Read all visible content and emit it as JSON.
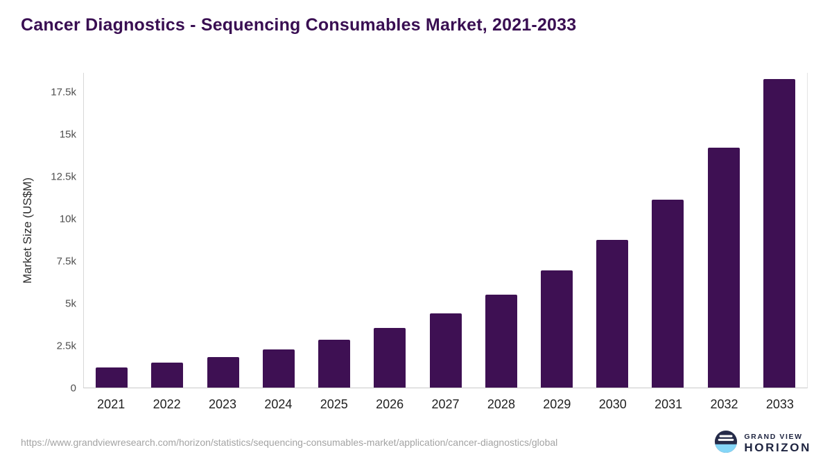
{
  "title": "Cancer Diagnostics - Sequencing Consumables Market, 2021-2033",
  "chart_data": {
    "type": "bar",
    "categories": [
      "2021",
      "2022",
      "2023",
      "2024",
      "2025",
      "2026",
      "2027",
      "2028",
      "2029",
      "2030",
      "2031",
      "2032",
      "2033"
    ],
    "values": [
      1200,
      1480,
      1800,
      2250,
      2820,
      3520,
      4400,
      5500,
      6950,
      8750,
      11150,
      14200,
      18300
    ],
    "title": "Cancer Diagnostics - Sequencing Consumables Market, 2021-2033",
    "xlabel": "",
    "ylabel": "Market Size (US$M)",
    "ylim": [
      0,
      18650
    ],
    "yticks": [
      0,
      2500,
      5000,
      7500,
      10000,
      12500,
      15000,
      17500
    ],
    "ytick_labels": [
      "0",
      "2.5k",
      "5k",
      "7.5k",
      "10k",
      "12.5k",
      "15k",
      "17.5k"
    ],
    "bar_color": "#3e1053",
    "grid": false,
    "legend_position": "none"
  },
  "footer": {
    "source_url": "https://www.grandviewresearch.com/horizon/statistics/sequencing-consumables-market/application/cancer-diagnostics/global",
    "logo": {
      "line1": "GRAND VIEW",
      "line2": "HORIZON"
    }
  }
}
